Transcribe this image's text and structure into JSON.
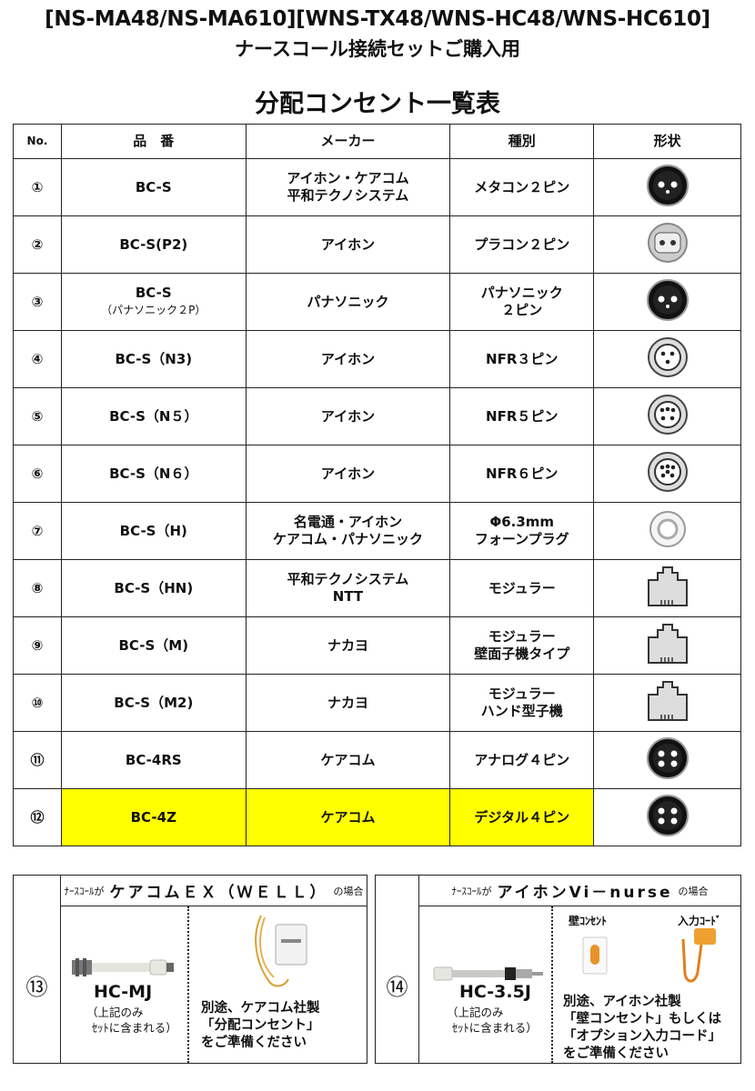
{
  "header": {
    "title_line1": "[NS-MA48/NS-MA610][WNS-TX48/WNS-HC48/WNS-HC610]",
    "title_line2": "ナースコール接続セットご購入用",
    "table_title": "分配コンセント一覧表"
  },
  "columns": [
    "No.",
    "品　番",
    "メーカー",
    "種別",
    "形状"
  ],
  "rows": [
    {
      "no": "①",
      "part": "BC-S",
      "part_sub": "",
      "maker": [
        "アイホン・ケアコム",
        "平和テクノシステム"
      ],
      "type": [
        "メタコン２ピン"
      ],
      "icon": "metal-2pin-connector-icon",
      "highlight": false
    },
    {
      "no": "②",
      "part": "BC-S(P2)",
      "part_sub": "",
      "maker": [
        "アイホン"
      ],
      "type": [
        "プラコン２ピン"
      ],
      "icon": "plastic-2pin-connector-icon",
      "highlight": false
    },
    {
      "no": "③",
      "part": "BC-S",
      "part_sub": "（パナソニック２P）",
      "maker": [
        "パナソニック"
      ],
      "type": [
        "パナソニック",
        "２ピン"
      ],
      "icon": "panasonic-2pin-connector-icon",
      "highlight": false
    },
    {
      "no": "④",
      "part": "BC-S（N3)",
      "part_sub": "",
      "maker": [
        "アイホン"
      ],
      "type": [
        "NFR３ピン"
      ],
      "icon": "nfr-3pin-connector-icon",
      "highlight": false
    },
    {
      "no": "⑤",
      "part": "BC-S（N５）",
      "part_sub": "",
      "maker": [
        "アイホン"
      ],
      "type": [
        "NFR５ピン"
      ],
      "icon": "nfr-5pin-connector-icon",
      "highlight": false
    },
    {
      "no": "⑥",
      "part": "BC-S（N６）",
      "part_sub": "",
      "maker": [
        "アイホン"
      ],
      "type": [
        "NFR６ピン"
      ],
      "icon": "nfr-6pin-connector-icon",
      "highlight": false
    },
    {
      "no": "⑦",
      "part": "BC-S（H)",
      "part_sub": "",
      "maker": [
        "名電通・アイホン",
        "ケアコム・パナソニック"
      ],
      "type": [
        "Φ6.3mm",
        "フォーンプラグ"
      ],
      "icon": "phone-plug-jack-icon",
      "highlight": false
    },
    {
      "no": "⑧",
      "part": "BC-S（HN)",
      "part_sub": "",
      "maker": [
        "平和テクノシステム",
        "NTT"
      ],
      "type": [
        "モジュラー"
      ],
      "icon": "modular-jack-icon",
      "highlight": false
    },
    {
      "no": "⑨",
      "part": "BC-S（M)",
      "part_sub": "",
      "maker": [
        "ナカヨ"
      ],
      "type": [
        "モジュラー",
        "壁面子機タイプ"
      ],
      "icon": "modular-jack-icon",
      "highlight": false
    },
    {
      "no": "⑩",
      "part": "BC-S（M2)",
      "part_sub": "",
      "maker": [
        "ナカヨ"
      ],
      "type": [
        "モジュラー",
        "ハンド型子機"
      ],
      "icon": "modular-jack-icon",
      "highlight": false
    },
    {
      "no": "⑪",
      "part": "BC-4RS",
      "part_sub": "",
      "maker": [
        "ケアコム"
      ],
      "type": [
        "アナログ４ピン"
      ],
      "icon": "analog-4pin-connector-icon",
      "highlight": false
    },
    {
      "no": "⑫",
      "part": "BC-4Z",
      "part_sub": "",
      "maker": [
        "ケアコム"
      ],
      "type": [
        "デジタル４ピン"
      ],
      "icon": "digital-4pin-connector-icon",
      "highlight": true
    }
  ],
  "colors": {
    "highlight": "#ffff00",
    "border": "#222222"
  },
  "box13": {
    "no": "⑬",
    "prefix": "ﾅｰｽｺｰﾙが",
    "system": "ケアコムＥＸ（ＷＥＬＬ）",
    "suffix": "の場合",
    "part": "HC-MJ",
    "part_note": [
      "（上記のみ",
      "ｾｯﾄに含まれる）"
    ],
    "note": [
      "別途、ケアコム社製",
      "「分配コンセント」",
      "をご準備ください"
    ]
  },
  "box14": {
    "no": "⑭",
    "prefix": "ﾅｰｽｺｰﾙが",
    "system": "アイホンVi－nurse",
    "suffix": "の場合",
    "part": "HC-3.5J",
    "part_note": [
      "（上記のみ",
      "ｾｯﾄに含まれる）"
    ],
    "label_wall": "壁ｺﾝｾﾝﾄ",
    "label_cord": "入力ｺｰﾄﾞ",
    "note": [
      "別途、アイホン社製",
      "「壁コンセント」もしくは",
      "「オプション入力コード」",
      "をご準備ください"
    ]
  }
}
